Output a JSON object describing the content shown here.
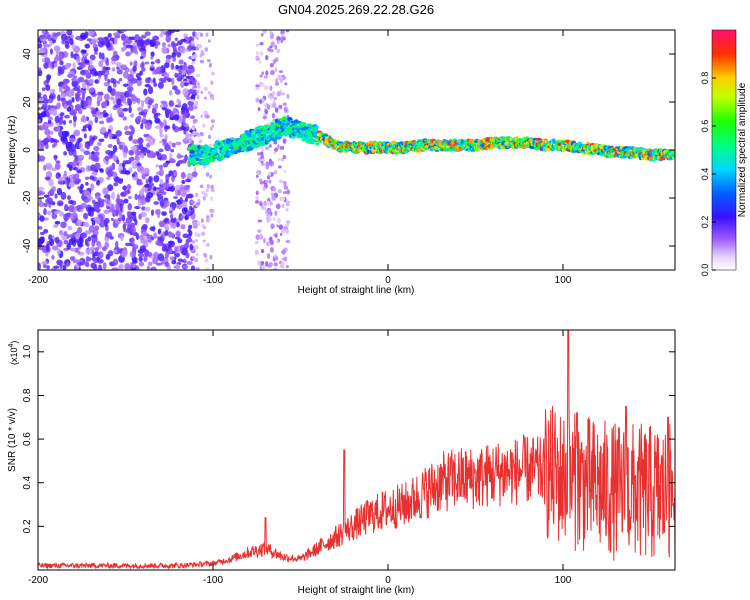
{
  "title": "GN04.2025.269.22.28.G26",
  "chart_data": [
    {
      "type": "heatmap",
      "xlabel": "Height of straight line (km)",
      "ylabel": "Frequency (Hz)",
      "xlim": [
        -200,
        164
      ],
      "ylim": [
        -50,
        50
      ],
      "xticks": [
        -200,
        -100,
        0,
        100
      ],
      "yticks": [
        -40,
        -20,
        0,
        20,
        40
      ],
      "colorbar": {
        "label": "Normalized spectral amplitude",
        "range": [
          0,
          1
        ],
        "ticks": [
          0.0,
          0.2,
          0.4,
          0.6,
          0.8
        ]
      },
      "ridge": {
        "x": [
          -115,
          -105,
          -95,
          -85,
          -75,
          -65,
          -58,
          -50,
          -45,
          -40,
          -30,
          -20,
          -10,
          0,
          10,
          20,
          30,
          40,
          50,
          60,
          70,
          80,
          90,
          100,
          110,
          120,
          130,
          140,
          150,
          164
        ],
        "freq": [
          -2,
          -2,
          0,
          3,
          5,
          8,
          10,
          8,
          7,
          6,
          2,
          1,
          1,
          1,
          1,
          2,
          2,
          2,
          2,
          3,
          3,
          3,
          2,
          2,
          1,
          0,
          -1,
          -1,
          -2,
          -2
        ]
      }
    },
    {
      "type": "line",
      "xlabel": "Height of straight line (km)",
      "ylabel": "SNR (10 * v/v)",
      "yscale_label": "(x10",
      "yscale_exp": "4",
      "xlim": [
        -200,
        164
      ],
      "ylim": [
        0,
        1.1
      ],
      "xticks": [
        -200,
        -100,
        0,
        100
      ],
      "yticks": [
        0.2,
        0.4,
        0.6,
        0.8,
        1.0
      ],
      "color": "#e83030",
      "series": {
        "x": [
          -200,
          -150,
          -120,
          -100,
          -90,
          -80,
          -70,
          -60,
          -50,
          -40,
          -30,
          -20,
          -10,
          0,
          10,
          20,
          30,
          40,
          50,
          60,
          70,
          80,
          90,
          100,
          110,
          120,
          130,
          140,
          150,
          164
        ],
        "y": [
          0.02,
          0.02,
          0.02,
          0.03,
          0.05,
          0.08,
          0.1,
          0.06,
          0.05,
          0.1,
          0.15,
          0.2,
          0.25,
          0.28,
          0.3,
          0.35,
          0.4,
          0.42,
          0.42,
          0.44,
          0.45,
          0.46,
          0.45,
          0.42,
          0.4,
          0.38,
          0.36,
          0.36,
          0.35,
          0.35
        ]
      },
      "spikes": [
        {
          "x": -70,
          "y": 0.24
        },
        {
          "x": -25,
          "y": 0.55
        },
        {
          "x": 103,
          "y": 1.1
        },
        {
          "x": 108,
          "y": 0.72
        },
        {
          "x": 136,
          "y": 0.75
        },
        {
          "x": 160,
          "y": 0.7
        }
      ]
    }
  ]
}
